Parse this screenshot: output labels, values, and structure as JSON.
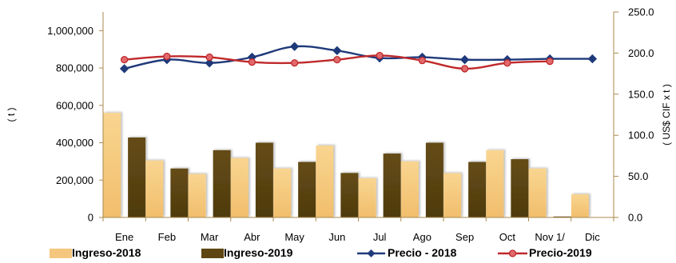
{
  "chart_data": {
    "type": "bar",
    "categories": [
      "Ene",
      "Feb",
      "Mar",
      "Abr",
      "May",
      "Jun",
      "Jul",
      "Ago",
      "Sep",
      "Oct",
      "Nov 1/",
      "Dic"
    ],
    "ylabel": "( t )",
    "y2label": "( US$ CIF x t )",
    "ylim": [
      0,
      1100000
    ],
    "y2lim": [
      0,
      250
    ],
    "yticks": [
      "0",
      "200,000",
      "400,000",
      "600,000",
      "800,000",
      "1,000,000"
    ],
    "y2ticks": [
      "0.0",
      "50.0",
      "100.0",
      "150.0",
      "200.0",
      "250.0"
    ],
    "series": [
      {
        "name": "Ingreso-2018",
        "kind": "bar",
        "axis": "left",
        "color": "#F5C77E",
        "values": [
          560000,
          305000,
          233000,
          318000,
          262000,
          385000,
          210000,
          300000,
          237000,
          360000,
          262000,
          124000
        ]
      },
      {
        "name": "Ingreso-2019",
        "kind": "bar",
        "axis": "left",
        "color": "#5E4612",
        "values": [
          428000,
          262000,
          360000,
          400000,
          297000,
          238000,
          342000,
          400000,
          297000,
          312000,
          5000,
          null
        ]
      },
      {
        "name": "Precio - 2018",
        "kind": "line",
        "axis": "right",
        "color": "#1F3A7A",
        "marker": "diamond",
        "values": [
          181,
          192,
          188,
          195,
          208,
          203,
          194,
          195,
          192,
          192,
          193,
          193
        ]
      },
      {
        "name": "Precio-2019",
        "kind": "line",
        "axis": "right",
        "color": "#C0292B",
        "marker": "circle",
        "values": [
          192,
          196,
          195,
          189,
          188,
          192,
          197,
          191,
          181,
          188,
          190,
          null
        ]
      }
    ],
    "legend_position": "bottom",
    "grid": false
  }
}
